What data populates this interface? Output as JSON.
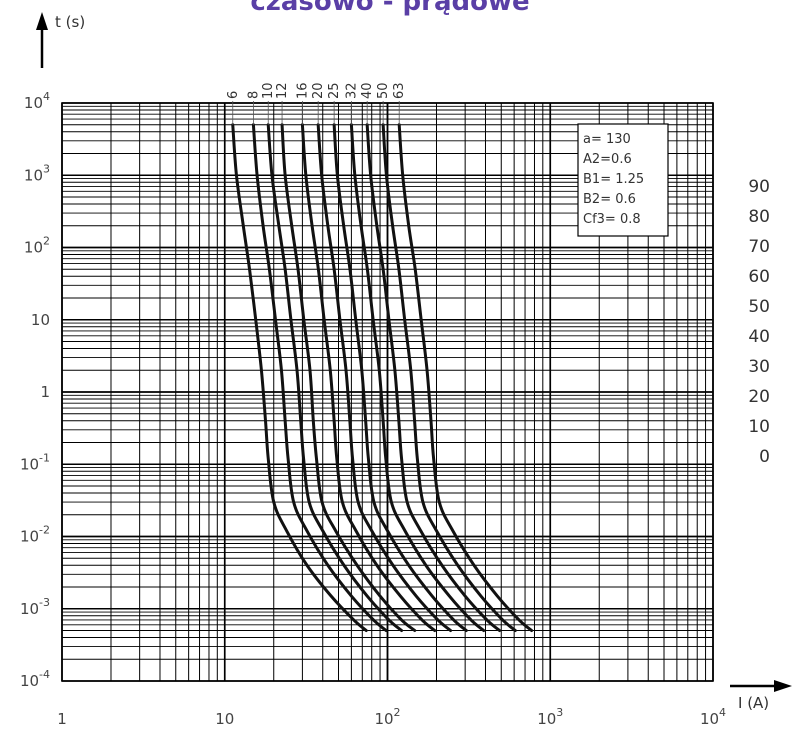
{
  "header": {
    "title": "czasowo - prądowe"
  },
  "chart_data": {
    "type": "line",
    "title": "czasowo - prądowe",
    "xlabel": "I (A)",
    "ylabel": "t (s)",
    "xscale": "log",
    "yscale": "log",
    "xlim": [
      1,
      10000
    ],
    "ylim": [
      0.0001,
      10000
    ],
    "grid": true,
    "x_ticks": [
      {
        "base": "1",
        "exp": ""
      },
      {
        "base": "10",
        "exp": ""
      },
      {
        "base": "10",
        "exp": "2"
      },
      {
        "base": "10",
        "exp": "3"
      },
      {
        "base": "10",
        "exp": "4"
      }
    ],
    "y_ticks": [
      {
        "base": "10",
        "exp": "4"
      },
      {
        "base": "10",
        "exp": "3"
      },
      {
        "base": "10",
        "exp": "2"
      },
      {
        "base": "10",
        "exp": ""
      },
      {
        "base": "1",
        "exp": ""
      },
      {
        "base": "10",
        "exp": "-1"
      },
      {
        "base": "10",
        "exp": "-2"
      },
      {
        "base": "10",
        "exp": "-3"
      },
      {
        "base": "10",
        "exp": "-4"
      }
    ],
    "parameters": [
      "a= 130",
      "A2=0.6",
      "B1= 1.25",
      "B2= 0.6",
      "Cf3= 0.8"
    ],
    "series": [
      {
        "name": "6",
        "points": [
          [
            11.2,
            5000
          ],
          [
            11.8,
            1000
          ],
          [
            13,
            200
          ],
          [
            14.2,
            50
          ],
          [
            15.5,
            10
          ],
          [
            16.8,
            2
          ],
          [
            17.8,
            0.4
          ],
          [
            18.5,
            0.12
          ],
          [
            20,
            0.03
          ],
          [
            24,
            0.012
          ],
          [
            32,
            0.004
          ],
          [
            45,
            0.0015
          ],
          [
            62,
            0.0007
          ],
          [
            74,
            0.0005
          ]
        ]
      },
      {
        "name": "8",
        "points": [
          [
            15,
            5000
          ],
          [
            15.8,
            1000
          ],
          [
            17.2,
            200
          ],
          [
            18.8,
            50
          ],
          [
            20.5,
            10
          ],
          [
            22.3,
            2
          ],
          [
            23.5,
            0.4
          ],
          [
            24.5,
            0.12
          ],
          [
            26.5,
            0.03
          ],
          [
            32,
            0.012
          ],
          [
            43,
            0.004
          ],
          [
            60,
            0.0015
          ],
          [
            82,
            0.0007
          ],
          [
            98,
            0.0005
          ]
        ]
      },
      {
        "name": "10",
        "points": [
          [
            18.5,
            5000
          ],
          [
            19.5,
            1000
          ],
          [
            21.5,
            200
          ],
          [
            23.5,
            50
          ],
          [
            25.5,
            10
          ],
          [
            27.8,
            2
          ],
          [
            29.3,
            0.4
          ],
          [
            30.5,
            0.12
          ],
          [
            33,
            0.03
          ],
          [
            40,
            0.012
          ],
          [
            54,
            0.004
          ],
          [
            75,
            0.0015
          ],
          [
            102,
            0.0007
          ],
          [
            122,
            0.0005
          ]
        ]
      },
      {
        "name": "12",
        "points": [
          [
            22.5,
            5000
          ],
          [
            23.5,
            1000
          ],
          [
            25.8,
            200
          ],
          [
            28.2,
            50
          ],
          [
            30.6,
            10
          ],
          [
            33.4,
            2
          ],
          [
            35,
            0.4
          ],
          [
            36.6,
            0.12
          ],
          [
            39.6,
            0.03
          ],
          [
            48,
            0.012
          ],
          [
            65,
            0.004
          ],
          [
            90,
            0.0015
          ],
          [
            122,
            0.0007
          ],
          [
            147,
            0.0005
          ]
        ]
      },
      {
        "name": "16",
        "points": [
          [
            30,
            5000
          ],
          [
            31.5,
            1000
          ],
          [
            34.4,
            200
          ],
          [
            37.6,
            50
          ],
          [
            40.8,
            10
          ],
          [
            44.5,
            2
          ],
          [
            47,
            0.4
          ],
          [
            48.8,
            0.12
          ],
          [
            52.8,
            0.03
          ],
          [
            64,
            0.012
          ],
          [
            86,
            0.004
          ],
          [
            120,
            0.0015
          ],
          [
            163,
            0.0007
          ],
          [
            195,
            0.0005
          ]
        ]
      },
      {
        "name": "20",
        "points": [
          [
            37.5,
            5000
          ],
          [
            39.4,
            1000
          ],
          [
            43,
            200
          ],
          [
            47,
            50
          ],
          [
            51,
            10
          ],
          [
            55.6,
            2
          ],
          [
            58.7,
            0.4
          ],
          [
            61,
            0.12
          ],
          [
            66,
            0.03
          ],
          [
            80,
            0.012
          ],
          [
            108,
            0.004
          ],
          [
            150,
            0.0015
          ],
          [
            204,
            0.0007
          ],
          [
            244,
            0.0005
          ]
        ]
      },
      {
        "name": "25",
        "points": [
          [
            47,
            5000
          ],
          [
            49.2,
            1000
          ],
          [
            53.8,
            200
          ],
          [
            58.8,
            50
          ],
          [
            63.8,
            10
          ],
          [
            69.5,
            2
          ],
          [
            73.4,
            0.4
          ],
          [
            76.3,
            0.12
          ],
          [
            82.5,
            0.03
          ],
          [
            100,
            0.012
          ],
          [
            135,
            0.004
          ],
          [
            188,
            0.0015
          ],
          [
            255,
            0.0007
          ],
          [
            305,
            0.0005
          ]
        ]
      },
      {
        "name": "32",
        "points": [
          [
            60,
            5000
          ],
          [
            63,
            1000
          ],
          [
            68.8,
            200
          ],
          [
            75.2,
            50
          ],
          [
            81.6,
            10
          ],
          [
            89,
            2
          ],
          [
            94,
            0.4
          ],
          [
            97.6,
            0.12
          ],
          [
            105.6,
            0.03
          ],
          [
            128,
            0.012
          ],
          [
            172,
            0.004
          ],
          [
            240,
            0.0015
          ],
          [
            326,
            0.0007
          ],
          [
            390,
            0.0005
          ]
        ]
      },
      {
        "name": "40",
        "points": [
          [
            75,
            5000
          ],
          [
            78.8,
            1000
          ],
          [
            86,
            200
          ],
          [
            94,
            50
          ],
          [
            102,
            10
          ],
          [
            111,
            2
          ],
          [
            117.4,
            0.4
          ],
          [
            122,
            0.12
          ],
          [
            132,
            0.03
          ],
          [
            160,
            0.012
          ],
          [
            216,
            0.004
          ],
          [
            300,
            0.0015
          ],
          [
            408,
            0.0007
          ],
          [
            488,
            0.0005
          ]
        ]
      },
      {
        "name": "50",
        "points": [
          [
            94,
            5000
          ],
          [
            98.5,
            1000
          ],
          [
            107.5,
            200
          ],
          [
            117.5,
            50
          ],
          [
            127.5,
            10
          ],
          [
            139,
            2
          ],
          [
            146.7,
            0.4
          ],
          [
            152.5,
            0.12
          ],
          [
            165,
            0.03
          ],
          [
            200,
            0.012
          ],
          [
            270,
            0.004
          ],
          [
            375,
            0.0015
          ],
          [
            510,
            0.0007
          ],
          [
            610,
            0.0005
          ]
        ]
      },
      {
        "name": "63",
        "points": [
          [
            118,
            5000
          ],
          [
            124,
            1000
          ],
          [
            135,
            200
          ],
          [
            148,
            50
          ],
          [
            161,
            10
          ],
          [
            175,
            2
          ],
          [
            185,
            0.4
          ],
          [
            192,
            0.12
          ],
          [
            208,
            0.03
          ],
          [
            252,
            0.012
          ],
          [
            340,
            0.004
          ],
          [
            473,
            0.0015
          ],
          [
            643,
            0.0007
          ],
          [
            768,
            0.0005
          ]
        ]
      }
    ],
    "side_values": [
      "90",
      "80",
      "70",
      "60",
      "50",
      "40",
      "30",
      "20",
      "10",
      "0"
    ]
  }
}
